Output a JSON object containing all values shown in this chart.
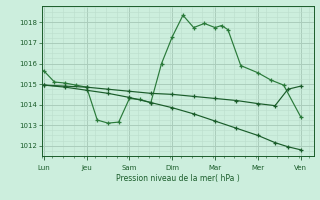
{
  "bg_color": "#cceedd",
  "grid_color_major": "#aaccbb",
  "grid_color_minor": "#bbddcc",
  "line_color_dark": "#1a5c2a",
  "line_color_mid": "#2a7a3a",
  "xlabel": "Pression niveau de la mer( hPa )",
  "ylim": [
    1011.5,
    1018.8
  ],
  "yticks": [
    1012,
    1013,
    1014,
    1015,
    1016,
    1017,
    1018
  ],
  "x_labels": [
    "Lun",
    "Jeu",
    "Sam",
    "Dim",
    "Mar",
    "Mer",
    "Ven"
  ],
  "x_positions": [
    0,
    1,
    2,
    3,
    4,
    5,
    6
  ],
  "xlim": [
    -0.05,
    6.3
  ],
  "s1_x": [
    0.0,
    0.25,
    0.5,
    0.75,
    1.0,
    1.25,
    1.5,
    1.75,
    2.0,
    2.25,
    2.5,
    2.75,
    3.0,
    3.25,
    3.5,
    3.75,
    4.0,
    4.15,
    4.3,
    4.6,
    5.0,
    5.3,
    5.6,
    6.0
  ],
  "s1_y": [
    1015.65,
    1015.1,
    1015.05,
    1014.95,
    1014.85,
    1013.25,
    1013.1,
    1013.15,
    1014.3,
    1014.25,
    1014.1,
    1016.0,
    1017.3,
    1018.35,
    1017.75,
    1017.95,
    1017.75,
    1017.85,
    1017.65,
    1015.9,
    1015.55,
    1015.2,
    1014.95,
    1013.4
  ],
  "s2_x": [
    0.0,
    0.5,
    1.0,
    1.5,
    2.0,
    2.5,
    3.0,
    3.5,
    4.0,
    4.5,
    5.0,
    5.4,
    5.7,
    6.0
  ],
  "s2_y": [
    1014.95,
    1014.9,
    1014.85,
    1014.75,
    1014.65,
    1014.55,
    1014.5,
    1014.4,
    1014.3,
    1014.2,
    1014.05,
    1013.95,
    1014.75,
    1014.9
  ],
  "s3_x": [
    0.0,
    0.5,
    1.0,
    1.5,
    2.0,
    2.5,
    3.0,
    3.5,
    4.0,
    4.5,
    5.0,
    5.4,
    5.7,
    6.0
  ],
  "s3_y": [
    1014.95,
    1014.85,
    1014.7,
    1014.55,
    1014.35,
    1014.1,
    1013.85,
    1013.55,
    1013.2,
    1012.85,
    1012.5,
    1012.15,
    1011.95,
    1011.8
  ]
}
